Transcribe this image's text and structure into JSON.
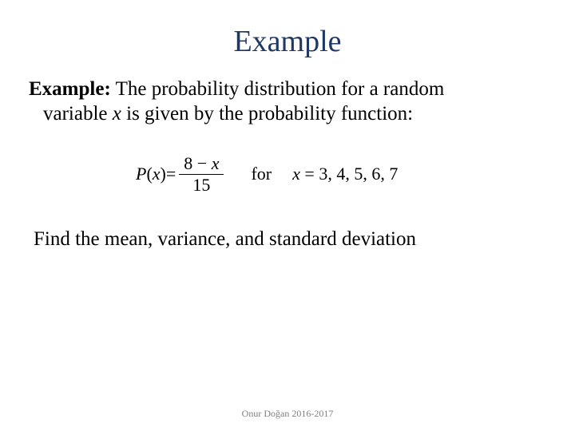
{
  "title": {
    "text": "Example",
    "color": "#1f3864",
    "fontsize": 38
  },
  "body": {
    "label": "Example:",
    "sentence_part1": "  The probability distribution for a random",
    "sentence_part2_prefix": "variable ",
    "variable": "x",
    "sentence_part2_suffix": " is given by the probability function:",
    "fontsize": 25,
    "color": "#000000"
  },
  "equation": {
    "lhs_P": "P",
    "lhs_open": "(",
    "lhs_var": "x",
    "lhs_close": ")",
    "equals": " = ",
    "numerator_prefix": "8 − ",
    "numerator_var": "x",
    "denominator": "15",
    "for_text": "for",
    "rhs_prefix": "x",
    "rhs_rest": " = 3,  4,  5,  6,  7",
    "fontsize": 22,
    "color": "#000000"
  },
  "task": {
    "text": "Find the mean, variance, and standard deviation",
    "fontsize": 25,
    "color": "#000000"
  },
  "footer": {
    "text": "Onur Doğan 2016-2017",
    "color": "#7f7f7f",
    "fontsize": 12
  }
}
